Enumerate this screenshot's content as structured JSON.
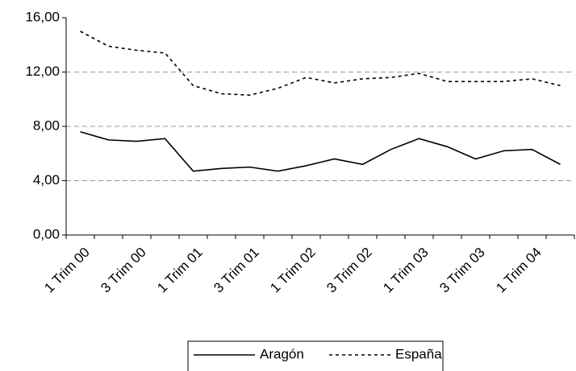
{
  "chart_data": {
    "type": "line",
    "categories": [
      "1 Trim 00",
      null,
      "3 Trim 00",
      null,
      "1 Trim 01",
      null,
      "3 Trim 01",
      null,
      "1 Trim 02",
      null,
      "3 Trim 02",
      null,
      "1 Trim 03",
      null,
      "3 Trim 03",
      null,
      "1 Trim 04",
      null
    ],
    "series": [
      {
        "name": "Aragón",
        "color": "#000000",
        "line_style": "solid",
        "values": [
          7.6,
          7.0,
          6.9,
          7.1,
          4.7,
          4.9,
          5.0,
          4.7,
          5.1,
          5.6,
          5.2,
          6.3,
          7.1,
          6.5,
          5.6,
          6.2,
          6.3,
          5.2
        ]
      },
      {
        "name": "España",
        "color": "#000000",
        "line_style": "dashed",
        "values": [
          15.0,
          13.9,
          13.6,
          13.4,
          11.0,
          10.4,
          10.3,
          10.8,
          11.6,
          11.2,
          11.5,
          11.6,
          11.9,
          11.3,
          11.3,
          11.3,
          11.5,
          11.0
        ]
      }
    ],
    "ylim": [
      0,
      16
    ],
    "yticks": [
      {
        "value": 0,
        "label": "0,00"
      },
      {
        "value": 4,
        "label": "4,00"
      },
      {
        "value": 8,
        "label": "8,00"
      },
      {
        "value": 12,
        "label": "12,00"
      },
      {
        "value": 16,
        "label": "16,00"
      }
    ],
    "grid": true,
    "grid_color": "#999999",
    "legend": "bottom"
  }
}
